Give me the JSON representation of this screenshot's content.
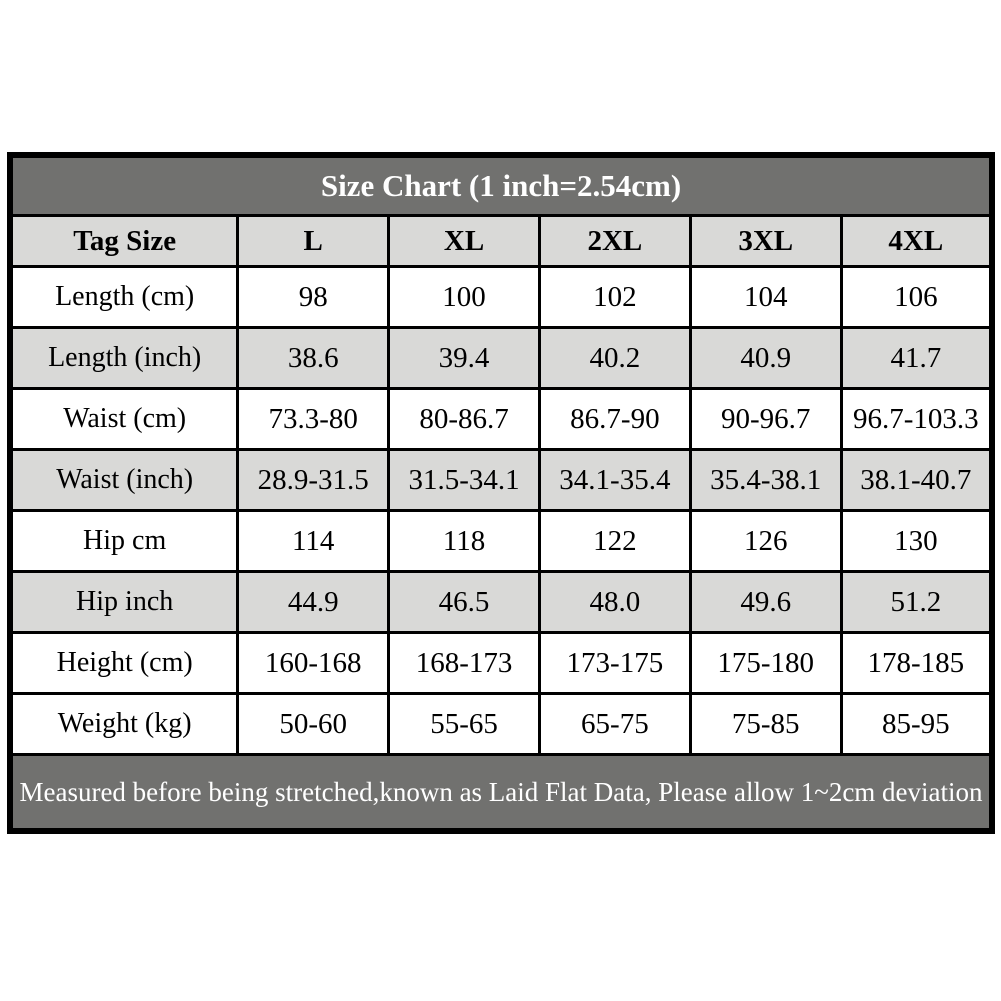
{
  "chart_data": {
    "type": "table",
    "title": "Size Chart (1 inch=2.54cm)",
    "columns": [
      "Tag Size",
      "L",
      "XL",
      "2XL",
      "3XL",
      "4XL"
    ],
    "rows": [
      {
        "label": "Length (cm)",
        "values": [
          "98",
          "100",
          "102",
          "104",
          "106"
        ]
      },
      {
        "label": "Length (inch)",
        "values": [
          "38.6",
          "39.4",
          "40.2",
          "40.9",
          "41.7"
        ]
      },
      {
        "label": "Waist (cm)",
        "values": [
          "73.3-80",
          "80-86.7",
          "86.7-90",
          "90-96.7",
          "96.7-103.3"
        ]
      },
      {
        "label": "Waist (inch)",
        "values": [
          "28.9-31.5",
          "31.5-34.1",
          "34.1-35.4",
          "35.4-38.1",
          "38.1-40.7"
        ]
      },
      {
        "label": "Hip cm",
        "values": [
          "114",
          "118",
          "122",
          "126",
          "130"
        ]
      },
      {
        "label": "Hip inch",
        "values": [
          "44.9",
          "46.5",
          "48.0",
          "49.6",
          "51.2"
        ]
      },
      {
        "label": "Height (cm)",
        "values": [
          "160-168",
          "168-173",
          "173-175",
          "175-180",
          "178-185"
        ]
      },
      {
        "label": "Weight (kg)",
        "values": [
          "50-60",
          "55-65",
          "65-75",
          "75-85",
          "85-95"
        ]
      }
    ],
    "footnote": "Measured before being stretched,known as Laid Flat Data, Please allow 1~2cm deviation",
    "layout": {
      "shaded_row_indexes": [
        1,
        3,
        5
      ],
      "grid": "solid-black"
    }
  },
  "colors": {
    "title_bg": "#71716f",
    "footer_bg": "#71716f",
    "header_bg": "#d9d9d7",
    "shaded_row_bg": "#d9d9d7",
    "border": "#000000",
    "title_text": "#ffffff",
    "cell_text": "#000000"
  }
}
